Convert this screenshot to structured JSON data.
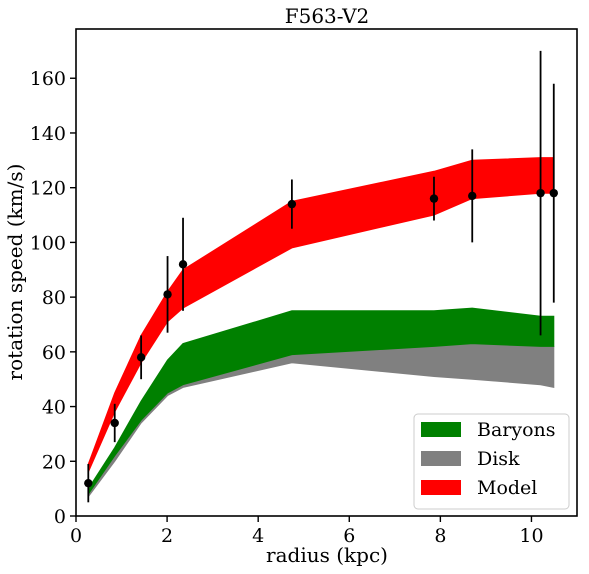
{
  "chart_data": {
    "type": "area",
    "title": "F563-V2",
    "xlabel": "radius (kpc)",
    "ylabel": "rotation speed (km/s)",
    "xlim": [
      0,
      11
    ],
    "ylim": [
      0,
      178
    ],
    "x_ticks": [
      0,
      2,
      4,
      6,
      8,
      10
    ],
    "y_ticks": [
      0,
      20,
      40,
      60,
      80,
      100,
      120,
      140,
      160
    ],
    "grid": false,
    "legend_position": "bottom-right",
    "series": [
      {
        "name": "Disk",
        "color": "#808080",
        "x": [
          0.27,
          0.85,
          1.43,
          2.01,
          2.35,
          4.74,
          7.86,
          8.7,
          10.2,
          10.49
        ],
        "lower": [
          7,
          20,
          34,
          44,
          47,
          56,
          51,
          50,
          48,
          47
        ],
        "upper": [
          9,
          24,
          40,
          56,
          62,
          74,
          68,
          66,
          63,
          62
        ]
      },
      {
        "name": "Baryons",
        "color": "#008000",
        "x": [
          0.27,
          0.85,
          1.43,
          2.01,
          2.35,
          4.74,
          7.86,
          8.7,
          10.2,
          10.49
        ],
        "lower": [
          8,
          22,
          35,
          45,
          48,
          59,
          62,
          63,
          62,
          62
        ],
        "upper": [
          10,
          25,
          42,
          57,
          63,
          75,
          75,
          76,
          73,
          73
        ]
      },
      {
        "name": "Model",
        "color": "#ff0000",
        "x": [
          0.27,
          0.85,
          1.43,
          2.01,
          2.35,
          4.74,
          7.86,
          8.7,
          10.2,
          10.49
        ],
        "lower": [
          16,
          38,
          56,
          71,
          76,
          98,
          110,
          116,
          118,
          118
        ],
        "upper": [
          19,
          45,
          66,
          82,
          90,
          115,
          126,
          130,
          131,
          131
        ]
      }
    ],
    "observations": {
      "color": "#000000",
      "x": [
        0.27,
        0.85,
        1.43,
        2.01,
        2.35,
        4.74,
        7.86,
        8.7,
        10.2,
        10.49
      ],
      "y": [
        12,
        34,
        58,
        81,
        92,
        114,
        116,
        117,
        118,
        118
      ],
      "err": [
        7,
        7,
        8,
        14,
        17,
        9,
        8,
        17,
        52,
        40
      ]
    },
    "legend": [
      "Baryons",
      "Disk",
      "Model"
    ]
  }
}
